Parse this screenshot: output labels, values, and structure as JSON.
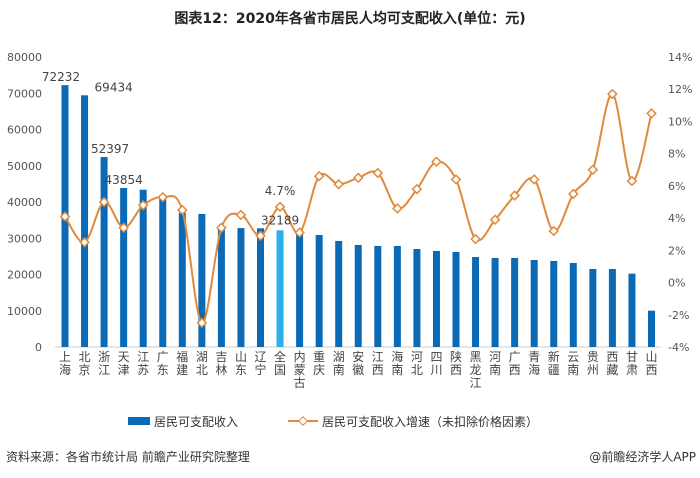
{
  "chart_data": {
    "type": "bar+line",
    "title": "图表12：2020年各省市居民人均可支配收入(单位：元)",
    "categories": [
      "上海",
      "北京",
      "浙江",
      "天津",
      "江苏",
      "广东",
      "福建",
      "湖北",
      "吉林",
      "山东",
      "辽宁",
      "全国",
      "内蒙古",
      "重庆",
      "湖南",
      "安徽",
      "江西",
      "海南",
      "河北",
      "四川",
      "陕西",
      "黑龙江",
      "河南",
      "广西",
      "青海",
      "新疆",
      "云南",
      "贵州",
      "西藏",
      "甘肃",
      "山西"
    ],
    "series": [
      {
        "name": "居民可支配收入",
        "type": "bar",
        "axis": "left",
        "color": "#0a6ab6",
        "highlight_color": "#2bb0e8",
        "highlight_category": "全国",
        "values": [
          72232,
          69434,
          52397,
          43854,
          43390,
          41029,
          37000,
          36700,
          32800,
          32800,
          32738,
          32189,
          31500,
          30900,
          29250,
          28140,
          27870,
          27870,
          27040,
          26490,
          26210,
          24830,
          24560,
          24560,
          24000,
          23730,
          23180,
          21520,
          21520,
          20230,
          10020
        ]
      },
      {
        "name": "居民可支配收入增速（未扣除价格因素）",
        "type": "line",
        "axis": "right",
        "unit": "%",
        "color": "#e08a3c",
        "values": [
          4.1,
          2.5,
          5.0,
          3.4,
          4.8,
          5.3,
          4.5,
          -2.5,
          3.4,
          4.2,
          2.9,
          4.7,
          3.1,
          6.6,
          6.1,
          6.5,
          6.8,
          4.6,
          5.8,
          7.5,
          6.4,
          2.7,
          3.9,
          5.4,
          6.4,
          3.2,
          5.5,
          7.0,
          11.7,
          6.3,
          10.5
        ]
      }
    ],
    "data_labels": [
      {
        "category": "上海",
        "text": "72232"
      },
      {
        "category": "北京",
        "text": "69434"
      },
      {
        "category": "浙江",
        "text": "52397"
      },
      {
        "category": "天津",
        "text": "43854"
      },
      {
        "category": "全国",
        "text": "32189"
      },
      {
        "category": "全国",
        "text": "4.7%",
        "series": "line"
      }
    ],
    "y_left": {
      "range": [
        0,
        80000
      ],
      "ticks": [
        "0",
        "10000",
        "20000",
        "30000",
        "40000",
        "50000",
        "60000",
        "70000",
        "80000"
      ]
    },
    "y_right": {
      "range": [
        -4,
        14
      ],
      "ticks": [
        "-4%",
        "-2%",
        "0%",
        "2%",
        "4%",
        "6%",
        "8%",
        "10%",
        "12%",
        "14%"
      ]
    },
    "grid": false,
    "legend_position": "bottom"
  },
  "footer": {
    "source": "资料来源：各省市统计局 前瞻产业研究院整理",
    "brand": "@前瞻经济学人APP"
  }
}
